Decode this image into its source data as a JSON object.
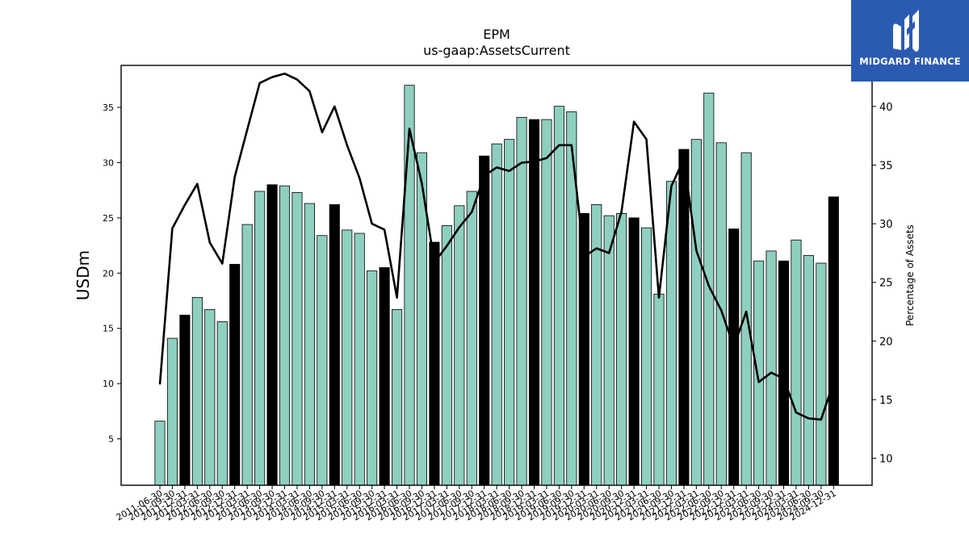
{
  "chart_data": {
    "type": "bar",
    "title": "EPM",
    "subtitle": "us-gaap:AssetsCurrent",
    "ylabel": "USDm",
    "y2label": "Percentage of Assets",
    "ylim": [
      0.8,
      38.8
    ],
    "y2lim": [
      7.7,
      43.5
    ],
    "yticks": [
      5,
      10,
      15,
      20,
      25,
      30,
      35
    ],
    "y2ticks": [
      10,
      15,
      20,
      25,
      30,
      35,
      40
    ],
    "categories": [
      "2011-06-30",
      "2011-09-30",
      "2011-12-31",
      "2012-03-31",
      "2012-06-30",
      "2012-09-30",
      "2012-12-31",
      "2013-03-31",
      "2013-06-30",
      "2013-09-30",
      "2013-12-31",
      "2014-03-31",
      "2014-06-30",
      "2014-09-30",
      "2014-12-31",
      "2015-03-31",
      "2015-06-30",
      "2015-09-30",
      "2015-12-31",
      "2016-03-31",
      "2016-06-30",
      "2016-09-30",
      "2016-12-31",
      "2017-03-31",
      "2017-06-30",
      "2017-09-30",
      "2017-12-31",
      "2018-03-31",
      "2018-06-30",
      "2018-09-30",
      "2018-12-31",
      "2019-03-31",
      "2019-06-30",
      "2019-09-30",
      "2019-12-31",
      "2020-03-31",
      "2020-06-30",
      "2020-09-30",
      "2020-12-31",
      "2021-03-31",
      "2021-06-30",
      "2021-09-30",
      "2021-12-31",
      "2022-03-31",
      "2022-06-30",
      "2022-09-30",
      "2022-12-31",
      "2023-03-31",
      "2023-06-30",
      "2023-09-30",
      "2023-12-31",
      "2024-03-31",
      "2024-06-30",
      "2024-09-30",
      "2024-12-31"
    ],
    "series": [
      {
        "type": "bar",
        "values": [
          6.6,
          14.1,
          16.2,
          17.8,
          16.7,
          15.6,
          20.8,
          24.4,
          27.4,
          28.0,
          27.9,
          27.3,
          26.3,
          23.4,
          26.2,
          23.9,
          23.6,
          20.2,
          20.5,
          16.7,
          37.0,
          30.9,
          22.8,
          24.3,
          26.1,
          27.4,
          30.6,
          31.7,
          32.1,
          34.1,
          33.9,
          33.9,
          35.1,
          34.6,
          25.4,
          26.2,
          25.2,
          25.4,
          25.0,
          24.1,
          18.1,
          28.3,
          31.2,
          32.1,
          36.3,
          31.8,
          24.0,
          30.9,
          21.1,
          22.0,
          21.1,
          23.0,
          21.6,
          20.9,
          26.9
        ],
        "highlight_color": "#000000",
        "color": "#8ecfc0"
      },
      {
        "type": "line",
        "axis": "right",
        "color": "#000000",
        "values": [
          16.3,
          29.6,
          31.6,
          33.4,
          28.4,
          26.6,
          34.0,
          38.0,
          42.0,
          42.5,
          42.8,
          42.3,
          41.3,
          37.8,
          40.0,
          36.7,
          33.9,
          30.0,
          29.5,
          23.7,
          38.1,
          33.4,
          26.7,
          28.1,
          29.7,
          31.0,
          34.1,
          34.8,
          34.5,
          35.2,
          35.3,
          35.6,
          36.7,
          36.7,
          27.2,
          27.9,
          27.5,
          31.0,
          38.7,
          37.2,
          23.7,
          33.2,
          35.5,
          27.7,
          24.7,
          22.6,
          19.5,
          22.5,
          16.5,
          17.3,
          16.8,
          13.9,
          13.4,
          13.3,
          16.5
        ]
      }
    ],
    "highlight_indices": [
      2,
      6,
      9,
      14,
      18,
      22,
      26,
      30,
      34,
      38,
      42,
      46,
      50,
      54
    ],
    "grid": false,
    "legend": "none"
  },
  "brand": {
    "name": "MIDGARD FINANCE",
    "color": "#2b5bb0"
  }
}
